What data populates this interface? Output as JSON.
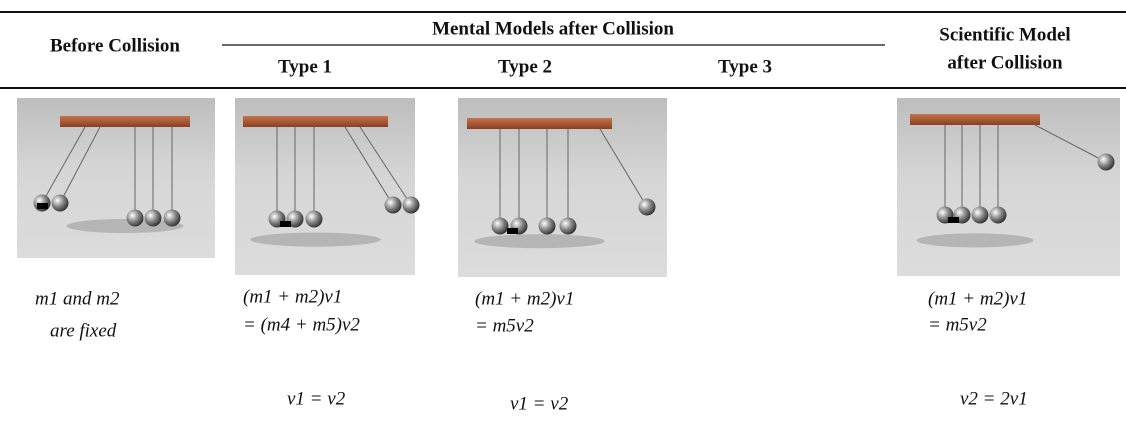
{
  "table": {
    "header": {
      "before": "Before Collision",
      "mental": "Mental Models after Collision",
      "types": [
        "Type 1",
        "Type 2",
        "Type 3"
      ],
      "scientific": [
        "Scientific Model",
        "after Collision"
      ]
    },
    "cells": {
      "before": {
        "lines": [
          "m1 and m2",
          "are fixed"
        ]
      },
      "type1": {
        "lines": [
          "(m1 + m2)v1",
          "= (m4 + m5)v2"
        ],
        "result": "v1 = v2"
      },
      "type2": {
        "lines": [
          "(m1 + m2)v1",
          "= m5v2"
        ],
        "result": "v1 = v2"
      },
      "scientific": {
        "lines": [
          "(m1 + m2)v1",
          "= m5v2"
        ],
        "result": "v2 = 2v1"
      }
    }
  }
}
